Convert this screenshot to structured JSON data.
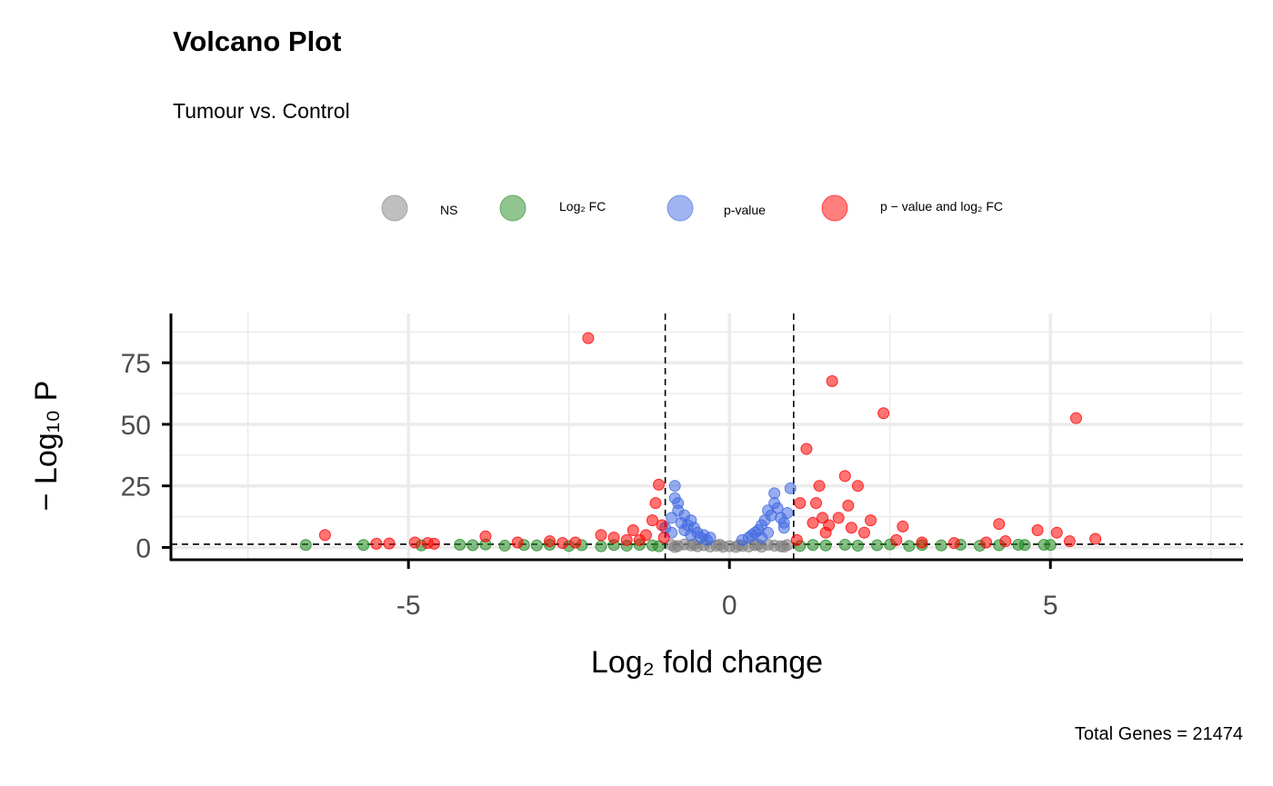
{
  "title": "Volcano Plot",
  "subtitle": "Tumour vs. Control",
  "caption": "Total Genes = 21474",
  "legend": [
    {
      "label": "NS",
      "color": "#808080"
    },
    {
      "label": "Log₂ FC",
      "color": "#228b22"
    },
    {
      "label": "p-value",
      "color": "#4169e1"
    },
    {
      "label": "p − value and log₂ FC",
      "color": "#ff0000"
    }
  ],
  "chart_data": {
    "type": "scatter",
    "title": "Volcano Plot",
    "subtitle": "Tumour vs. Control",
    "xlabel": "Log₂ fold change",
    "ylabel": "− Log₁₀ P",
    "xlim": [
      -8.7,
      8.0
    ],
    "ylim": [
      -5,
      95
    ],
    "xticks": [
      -5,
      0,
      5
    ],
    "xtick_labels": [
      "-5",
      "0",
      "5"
    ],
    "yticks": [
      0,
      25,
      50,
      75
    ],
    "ytick_labels": [
      "0",
      "25",
      "50",
      "75"
    ],
    "grid": true,
    "legend_position": "top",
    "thresholds": {
      "fc": [
        -1,
        1
      ],
      "p": 1.3
    },
    "series": [
      {
        "name": "NS",
        "color": "#808080",
        "points": [
          [
            -0.9,
            1
          ],
          [
            -0.8,
            0.6
          ],
          [
            -0.7,
            1.2
          ],
          [
            -0.6,
            0.8
          ],
          [
            -0.5,
            0.5
          ],
          [
            -0.4,
            0.9
          ],
          [
            -0.3,
            0.4
          ],
          [
            -0.2,
            0.7
          ],
          [
            -0.1,
            0.3
          ],
          [
            0,
            0.5
          ],
          [
            0.1,
            0.2
          ],
          [
            0.2,
            0.6
          ],
          [
            0.3,
            0.4
          ],
          [
            0.4,
            0.9
          ],
          [
            0.5,
            0.3
          ],
          [
            0.6,
            1.1
          ],
          [
            0.7,
            0.7
          ],
          [
            0.8,
            0.5
          ],
          [
            0.9,
            1.0
          ],
          [
            -0.15,
            1.1
          ],
          [
            0.15,
            1.0
          ],
          [
            -0.55,
            1.2
          ],
          [
            0.45,
            1.2
          ],
          [
            -0.85,
            0.2
          ],
          [
            0.85,
            0.3
          ]
        ]
      },
      {
        "name": "Log₂ FC",
        "color": "#228b22",
        "points": [
          [
            -6.6,
            1
          ],
          [
            -5.7,
            1
          ],
          [
            -4.8,
            0.8
          ],
          [
            -4.2,
            1.1
          ],
          [
            -4.0,
            0.9
          ],
          [
            -3.8,
            1.2
          ],
          [
            -3.5,
            0.7
          ],
          [
            -3.2,
            1.0
          ],
          [
            -3.0,
            0.8
          ],
          [
            -2.8,
            1.1
          ],
          [
            -2.5,
            0.6
          ],
          [
            -2.3,
            0.9
          ],
          [
            -2.0,
            0.5
          ],
          [
            -1.8,
            1.0
          ],
          [
            -1.6,
            0.7
          ],
          [
            -1.4,
            1.1
          ],
          [
            -1.2,
            0.8
          ],
          [
            -1.1,
            0.5
          ],
          [
            1.1,
            0.6
          ],
          [
            1.3,
            1.0
          ],
          [
            1.5,
            0.8
          ],
          [
            1.8,
            1.1
          ],
          [
            2.0,
            0.7
          ],
          [
            2.3,
            0.9
          ],
          [
            2.5,
            1.2
          ],
          [
            2.8,
            0.6
          ],
          [
            3.0,
            1.0
          ],
          [
            3.3,
            0.8
          ],
          [
            3.6,
            1.1
          ],
          [
            3.9,
            0.7
          ],
          [
            4.2,
            0.9
          ],
          [
            4.5,
            1.1
          ],
          [
            4.6,
            1.0
          ],
          [
            4.9,
            1.1
          ],
          [
            5.0,
            1.0
          ]
        ]
      },
      {
        "name": "p-value",
        "color": "#4169e1",
        "points": [
          [
            -1.0,
            8
          ],
          [
            -0.9,
            12
          ],
          [
            -0.9,
            6
          ],
          [
            -0.85,
            25
          ],
          [
            -0.85,
            20
          ],
          [
            -0.8,
            18
          ],
          [
            -0.8,
            15
          ],
          [
            -0.75,
            10
          ],
          [
            -0.7,
            13
          ],
          [
            -0.7,
            7
          ],
          [
            -0.65,
            9
          ],
          [
            -0.6,
            11
          ],
          [
            -0.6,
            5
          ],
          [
            -0.55,
            8
          ],
          [
            -0.5,
            6
          ],
          [
            -0.45,
            4
          ],
          [
            -0.4,
            5
          ],
          [
            -0.35,
            3
          ],
          [
            -0.3,
            4
          ],
          [
            0.2,
            3
          ],
          [
            0.3,
            4
          ],
          [
            0.35,
            5
          ],
          [
            0.4,
            6
          ],
          [
            0.45,
            7
          ],
          [
            0.5,
            9
          ],
          [
            0.55,
            11
          ],
          [
            0.6,
            15
          ],
          [
            0.65,
            13
          ],
          [
            0.7,
            18
          ],
          [
            0.75,
            16
          ],
          [
            0.8,
            12
          ],
          [
            0.85,
            10
          ],
          [
            0.9,
            14
          ],
          [
            0.95,
            24
          ],
          [
            0.7,
            22
          ],
          [
            0.85,
            8
          ],
          [
            0.6,
            6
          ],
          [
            0.5,
            4
          ]
        ]
      },
      {
        "name": "p − value and log₂ FC",
        "color": "#ff0000",
        "points": [
          [
            -2.2,
            85
          ],
          [
            -6.3,
            5
          ],
          [
            -5.5,
            1.5
          ],
          [
            -5.3,
            1.6
          ],
          [
            -4.9,
            2
          ],
          [
            -4.7,
            1.8
          ],
          [
            -4.6,
            1.5
          ],
          [
            -3.8,
            4.5
          ],
          [
            -3.3,
            2
          ],
          [
            -2.8,
            2.5
          ],
          [
            -2.6,
            1.8
          ],
          [
            -2.4,
            2
          ],
          [
            -2.0,
            5
          ],
          [
            -1.8,
            4
          ],
          [
            -1.6,
            3
          ],
          [
            -1.5,
            7
          ],
          [
            -1.4,
            3
          ],
          [
            -1.3,
            5
          ],
          [
            -1.2,
            11
          ],
          [
            -1.15,
            18
          ],
          [
            -1.1,
            25.5
          ],
          [
            -1.05,
            9
          ],
          [
            -1.02,
            4
          ],
          [
            1.05,
            3
          ],
          [
            1.1,
            18
          ],
          [
            1.2,
            40
          ],
          [
            1.3,
            10
          ],
          [
            1.35,
            18
          ],
          [
            1.4,
            25
          ],
          [
            1.45,
            12
          ],
          [
            1.5,
            6
          ],
          [
            1.55,
            9
          ],
          [
            1.6,
            67.5
          ],
          [
            1.7,
            12
          ],
          [
            1.8,
            29
          ],
          [
            1.85,
            17
          ],
          [
            1.9,
            8
          ],
          [
            2.0,
            25
          ],
          [
            2.1,
            6
          ],
          [
            2.2,
            11
          ],
          [
            2.4,
            54.5
          ],
          [
            2.6,
            3
          ],
          [
            2.7,
            8.5
          ],
          [
            3.0,
            2
          ],
          [
            3.5,
            1.8
          ],
          [
            4.0,
            2
          ],
          [
            4.2,
            9.5
          ],
          [
            4.3,
            2.5
          ],
          [
            4.8,
            7
          ],
          [
            5.1,
            6
          ],
          [
            5.3,
            2.5
          ],
          [
            5.4,
            52.5
          ],
          [
            5.7,
            3.5
          ]
        ]
      }
    ]
  }
}
